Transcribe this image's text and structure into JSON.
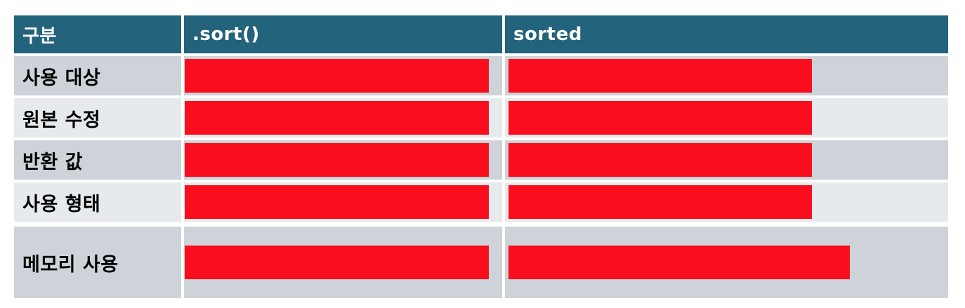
{
  "colors": {
    "page_bg": "#ffffff",
    "header_bg": "#23637c",
    "header_text": "#ffffff",
    "row_dark": "#ced3d9",
    "row_light": "#e7eaed",
    "label_text": "#000000",
    "redaction": "#fa0d1c"
  },
  "table": {
    "headers": {
      "category": "구분",
      "sort": ".sort()",
      "sorted": "sorted"
    },
    "rows": [
      {
        "label": "사용 대상",
        "sort_redacted": true,
        "sorted_redacted": true,
        "sort_redaction_width": 433,
        "sorted_redaction_width": 432,
        "tall": false
      },
      {
        "label": "원본 수정",
        "sort_redacted": true,
        "sorted_redacted": true,
        "sort_redaction_width": 433,
        "sorted_redaction_width": 432,
        "tall": false
      },
      {
        "label": "반환 값",
        "sort_redacted": true,
        "sorted_redacted": true,
        "sort_redaction_width": 433,
        "sorted_redaction_width": 432,
        "tall": false
      },
      {
        "label": "사용 형태",
        "sort_redacted": true,
        "sorted_redacted": true,
        "sort_redaction_width": 433,
        "sorted_redaction_width": 432,
        "tall": false
      },
      {
        "label": "메모리 사용",
        "sort_redacted": true,
        "sorted_redacted": true,
        "sort_redaction_width": 433,
        "sorted_redaction_width": 486,
        "tall": true
      }
    ]
  }
}
